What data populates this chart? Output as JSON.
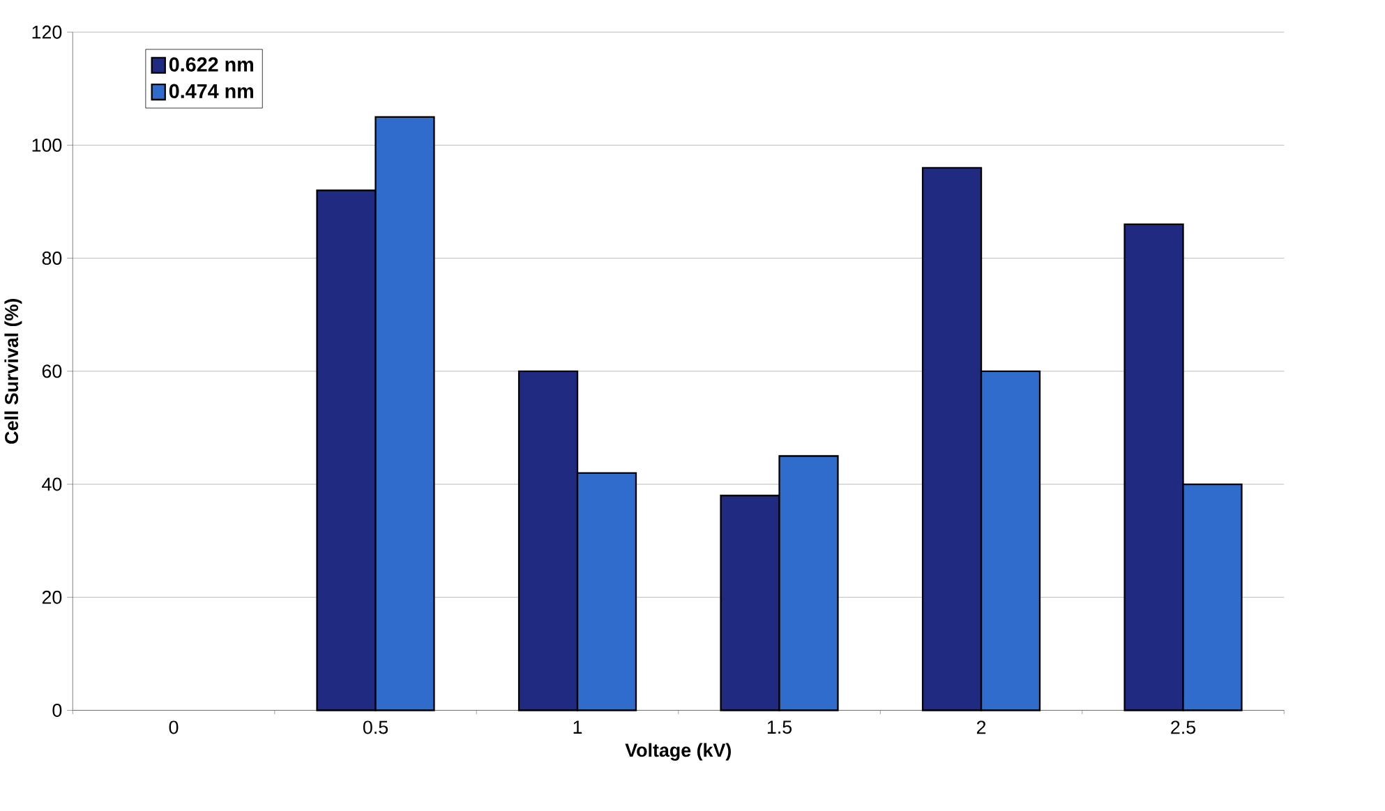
{
  "chart_data": {
    "type": "bar",
    "xlabel": "Voltage (kV)",
    "ylabel": "Cell Survival (%)",
    "categories": [
      "0",
      "0.5",
      "1",
      "1.5",
      "2",
      "2.5"
    ],
    "series": [
      {
        "name": "0.622 nm",
        "color": "#1f2a80",
        "values": [
          null,
          92,
          60,
          38,
          96,
          86
        ]
      },
      {
        "name": "0.474 nm",
        "color": "#2f6ccc",
        "values": [
          null,
          105,
          42,
          45,
          60,
          40
        ]
      }
    ],
    "ylim": [
      0,
      120
    ],
    "yticks": [
      0,
      20,
      40,
      60,
      80,
      100,
      120
    ],
    "grid": "y",
    "legend": "top left"
  }
}
